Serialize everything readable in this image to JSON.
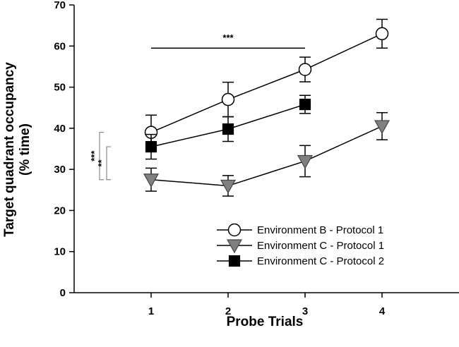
{
  "chart_data": {
    "type": "line",
    "title": "",
    "xlabel": "Probe Trials",
    "ylabel_line1": "Target quadrant occupancy",
    "ylabel_line2": "(% time)",
    "x": [
      1,
      2,
      3,
      4
    ],
    "xlim": [
      0,
      5
    ],
    "ylim": [
      0,
      70
    ],
    "yticks": [
      0,
      10,
      20,
      30,
      40,
      50,
      60,
      70
    ],
    "xticks": [
      1,
      2,
      3,
      4
    ],
    "series": [
      {
        "name": "Environment B - Protocol 1",
        "marker": "circle",
        "fill": "#ffffff",
        "x": [
          1,
          2,
          3,
          4
        ],
        "values": [
          39,
          47,
          54.3,
          63
        ],
        "errors": [
          4.2,
          4.2,
          3,
          3.5
        ]
      },
      {
        "name": "Environment C - Protocol 1",
        "marker": "triangle-down",
        "fill": "#808080",
        "x": [
          1,
          2,
          3,
          4
        ],
        "values": [
          27.5,
          26,
          32,
          40.5
        ],
        "errors": [
          2.8,
          2.5,
          3.8,
          3.3
        ]
      },
      {
        "name": "Environment C - Protocol 2",
        "marker": "square",
        "fill": "#000000",
        "x": [
          1,
          2,
          3
        ],
        "values": [
          35.5,
          39.8,
          45.8
        ],
        "errors": [
          3,
          3,
          2.2
        ]
      }
    ],
    "annotations": [
      {
        "text": "***",
        "kind": "horizontal-bracket",
        "x_from": 1,
        "x_to": 3,
        "y": 59.5
      },
      {
        "text": "***",
        "kind": "vertical-bracket",
        "y_from": 27.5,
        "y_to": 39
      },
      {
        "text": "**",
        "kind": "vertical-bracket",
        "y_from": 27.5,
        "y_to": 35.5
      }
    ],
    "legend_position": "bottom-right"
  }
}
